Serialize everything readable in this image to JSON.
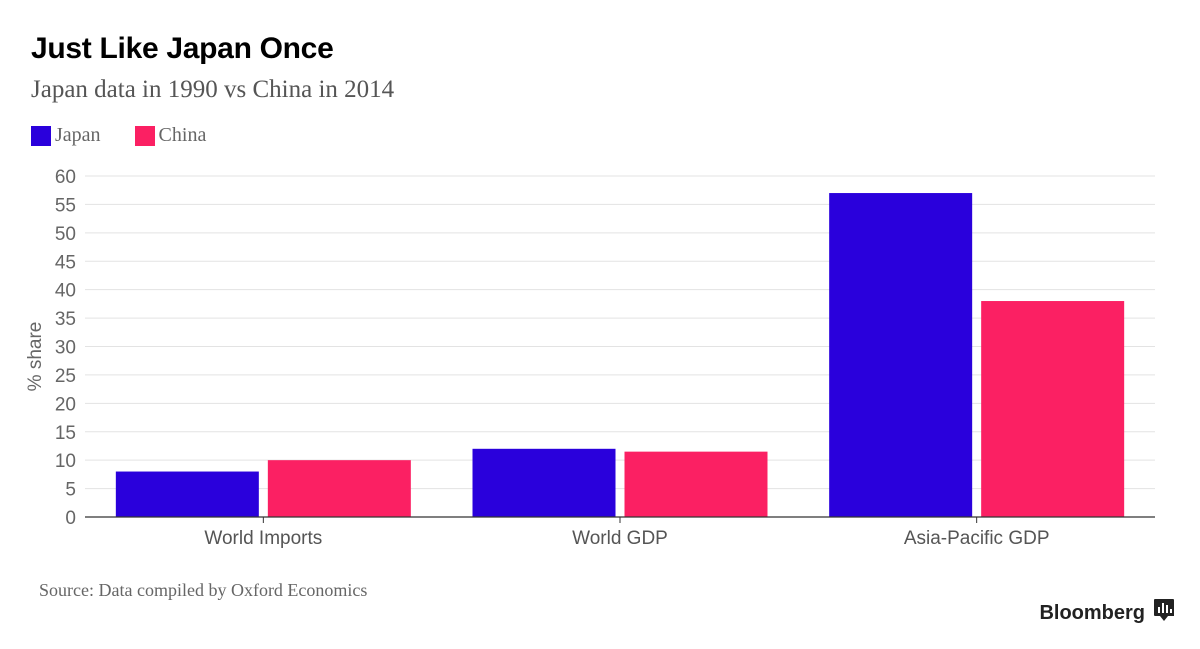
{
  "header": {
    "title": "Just Like Japan Once",
    "subtitle": "Japan data in 1990 vs China in 2014"
  },
  "footer": {
    "source": "Source: Data compiled by Oxford Economics",
    "brand": "Bloomberg"
  },
  "icons": {
    "brand_icon": "bloomberg-terminal-icon"
  },
  "chart_data": {
    "type": "bar",
    "title": "Just Like Japan Once",
    "subtitle": "Japan data in 1990 vs China in 2014",
    "xlabel": "",
    "ylabel": "% share",
    "ylim": [
      0,
      60
    ],
    "yticks": [
      0,
      5,
      10,
      15,
      20,
      25,
      30,
      35,
      40,
      45,
      50,
      55,
      60
    ],
    "grid": true,
    "legend_position": "top-left",
    "categories": [
      "World Imports",
      "World GDP",
      "Asia-Pacific GDP"
    ],
    "series": [
      {
        "name": "Japan",
        "color": "#2a00dc",
        "values": [
          8,
          12,
          57
        ]
      },
      {
        "name": "China",
        "color": "#fb2063",
        "values": [
          10,
          11.5,
          38
        ]
      }
    ]
  }
}
